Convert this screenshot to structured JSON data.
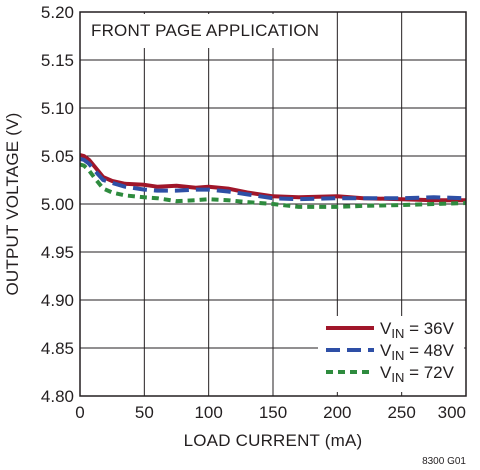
{
  "chart_data": {
    "type": "line",
    "title": "FRONT PAGE APPLICATION",
    "xlabel": "LOAD CURRENT (mA)",
    "ylabel": "OUTPUT VOLTAGE (V)",
    "xlim": [
      0,
      300
    ],
    "ylim": [
      4.8,
      5.2
    ],
    "xticks": [
      "0",
      "50",
      "100",
      "150",
      "200",
      "250",
      "300"
    ],
    "yticks": [
      "4.80",
      "4.85",
      "4.90",
      "4.95",
      "5.00",
      "5.05",
      "5.10",
      "5.15",
      "5.20"
    ],
    "grid": true,
    "legend_position": "bottom-right",
    "series": [
      {
        "name_main": "V",
        "name_sub": "IN",
        "name_tail": " = 36V",
        "color": "#a0162a",
        "dash": "solid",
        "x": [
          0,
          3,
          7,
          12,
          18,
          25,
          35,
          50,
          60,
          75,
          90,
          100,
          115,
          130,
          150,
          170,
          200,
          220,
          250,
          275,
          300
        ],
        "y": [
          5.051,
          5.05,
          5.046,
          5.038,
          5.028,
          5.024,
          5.021,
          5.02,
          5.018,
          5.019,
          5.017,
          5.018,
          5.016,
          5.012,
          5.008,
          5.007,
          5.008,
          5.006,
          5.005,
          5.004,
          5.004
        ]
      },
      {
        "name_main": "V",
        "name_sub": "IN",
        "name_tail": " = 48V",
        "color": "#2e4fa6",
        "dash": "longdash",
        "x": [
          0,
          3,
          7,
          12,
          18,
          25,
          35,
          50,
          60,
          75,
          90,
          100,
          115,
          130,
          150,
          170,
          200,
          220,
          250,
          275,
          300
        ],
        "y": [
          5.047,
          5.046,
          5.042,
          5.034,
          5.025,
          5.022,
          5.018,
          5.015,
          5.014,
          5.014,
          5.015,
          5.015,
          5.013,
          5.01,
          5.006,
          5.005,
          5.006,
          5.006,
          5.006,
          5.007,
          5.006
        ]
      },
      {
        "name_main": "V",
        "name_sub": "IN",
        "name_tail": " = 72V",
        "color": "#2e8b3e",
        "dash": "dash",
        "x": [
          0,
          3,
          7,
          12,
          18,
          25,
          35,
          50,
          60,
          75,
          90,
          100,
          115,
          130,
          150,
          170,
          200,
          220,
          250,
          275,
          300
        ],
        "y": [
          5.041,
          5.04,
          5.035,
          5.026,
          5.016,
          5.012,
          5.009,
          5.007,
          5.006,
          5.003,
          5.004,
          5.005,
          5.004,
          5.002,
          5.0,
          4.997,
          4.997,
          4.998,
          4.999,
          5.0,
          5.001
        ]
      }
    ]
  },
  "figure_id": "8300 G01"
}
